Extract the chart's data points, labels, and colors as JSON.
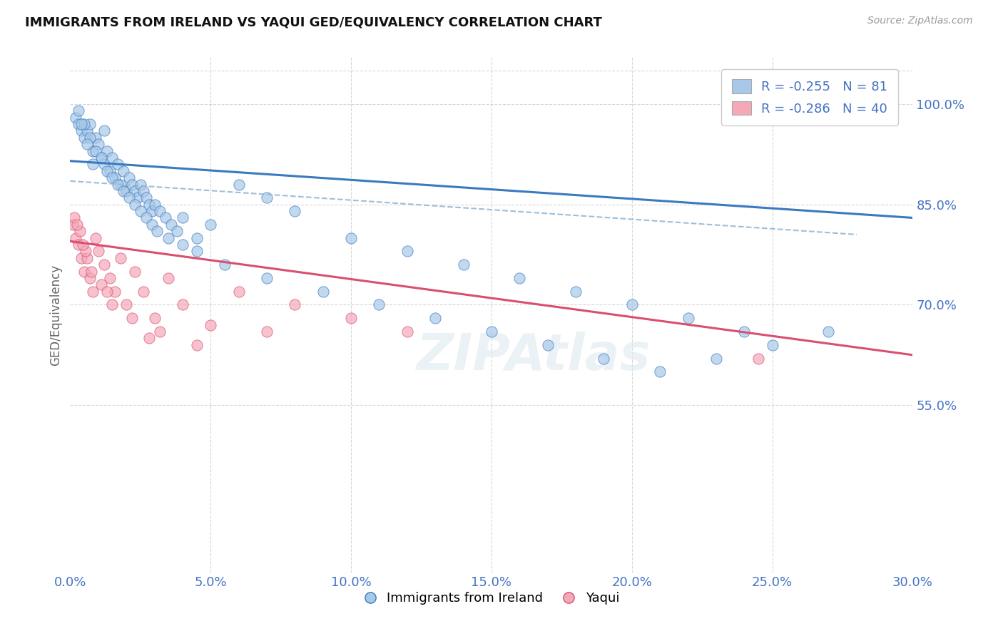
{
  "title": "IMMIGRANTS FROM IRELAND VS YAQUI GED/EQUIVALENCY CORRELATION CHART",
  "source": "Source: ZipAtlas.com",
  "ylabel": "GED/Equivalency",
  "legend1_label": "Immigrants from Ireland",
  "legend2_label": "Yaqui",
  "r1": -0.255,
  "n1": 81,
  "r2": -0.286,
  "n2": 40,
  "xmin": 0.0,
  "xmax": 30.0,
  "ymin": 30.0,
  "ymax": 107.0,
  "yticks": [
    55.0,
    70.0,
    85.0,
    100.0
  ],
  "xticks": [
    0.0,
    5.0,
    10.0,
    15.0,
    20.0,
    25.0,
    30.0
  ],
  "color_ireland": "#a8c8e8",
  "color_yaqui": "#f4a8b8",
  "color_trend_ireland": "#3a7abf",
  "color_trend_yaqui": "#d94f70",
  "color_trend_dashed": "#90b8d8",
  "axis_label_color": "#4472c4",
  "background_color": "#ffffff",
  "ireland_x": [
    0.2,
    0.3,
    0.4,
    0.5,
    0.6,
    0.7,
    0.8,
    0.9,
    1.0,
    1.1,
    1.2,
    1.3,
    1.4,
    1.5,
    1.6,
    1.7,
    1.8,
    1.9,
    2.0,
    2.1,
    2.2,
    2.3,
    2.4,
    2.5,
    2.6,
    2.7,
    2.8,
    2.9,
    3.0,
    3.2,
    3.4,
    3.6,
    3.8,
    4.0,
    4.5,
    5.0,
    6.0,
    7.0,
    8.0,
    10.0,
    12.0,
    14.0,
    16.0,
    18.0,
    20.0,
    22.0,
    24.0,
    0.3,
    0.5,
    0.7,
    0.9,
    1.1,
    1.3,
    1.5,
    1.7,
    1.9,
    2.1,
    2.3,
    2.5,
    2.7,
    2.9,
    3.1,
    3.5,
    4.0,
    4.5,
    5.5,
    7.0,
    9.0,
    11.0,
    13.0,
    15.0,
    17.0,
    19.0,
    21.0,
    23.0,
    25.0,
    27.0,
    0.4,
    0.6,
    0.8,
    1.2
  ],
  "ireland_y": [
    98,
    97,
    96,
    95,
    96,
    97,
    93,
    95,
    94,
    92,
    91,
    93,
    90,
    92,
    89,
    91,
    88,
    90,
    87,
    89,
    88,
    87,
    86,
    88,
    87,
    86,
    85,
    84,
    85,
    84,
    83,
    82,
    81,
    83,
    80,
    82,
    88,
    86,
    84,
    80,
    78,
    76,
    74,
    72,
    70,
    68,
    66,
    99,
    97,
    95,
    93,
    92,
    90,
    89,
    88,
    87,
    86,
    85,
    84,
    83,
    82,
    81,
    80,
    79,
    78,
    76,
    74,
    72,
    70,
    68,
    66,
    64,
    62,
    60,
    62,
    64,
    66,
    97,
    94,
    91,
    96
  ],
  "yaqui_x": [
    0.1,
    0.2,
    0.3,
    0.4,
    0.5,
    0.6,
    0.7,
    0.8,
    0.9,
    1.0,
    1.2,
    1.4,
    1.6,
    1.8,
    2.0,
    2.3,
    2.6,
    3.0,
    3.5,
    4.0,
    0.15,
    0.35,
    0.55,
    0.75,
    1.1,
    1.5,
    2.2,
    3.2,
    4.5,
    6.0,
    8.0,
    10.0,
    12.0,
    24.5,
    0.25,
    0.45,
    1.3,
    2.8,
    5.0,
    7.0
  ],
  "yaqui_y": [
    82,
    80,
    79,
    77,
    75,
    77,
    74,
    72,
    80,
    78,
    76,
    74,
    72,
    77,
    70,
    75,
    72,
    68,
    74,
    70,
    83,
    81,
    78,
    75,
    73,
    70,
    68,
    66,
    64,
    72,
    70,
    68,
    66,
    62,
    82,
    79,
    72,
    65,
    67,
    66
  ],
  "ireland_trendline": [
    91.5,
    83.0
  ],
  "yaqui_trendline": [
    79.5,
    62.5
  ],
  "dashed_trendline": [
    88.5,
    80.5
  ],
  "dashed_x_end": 28.0
}
